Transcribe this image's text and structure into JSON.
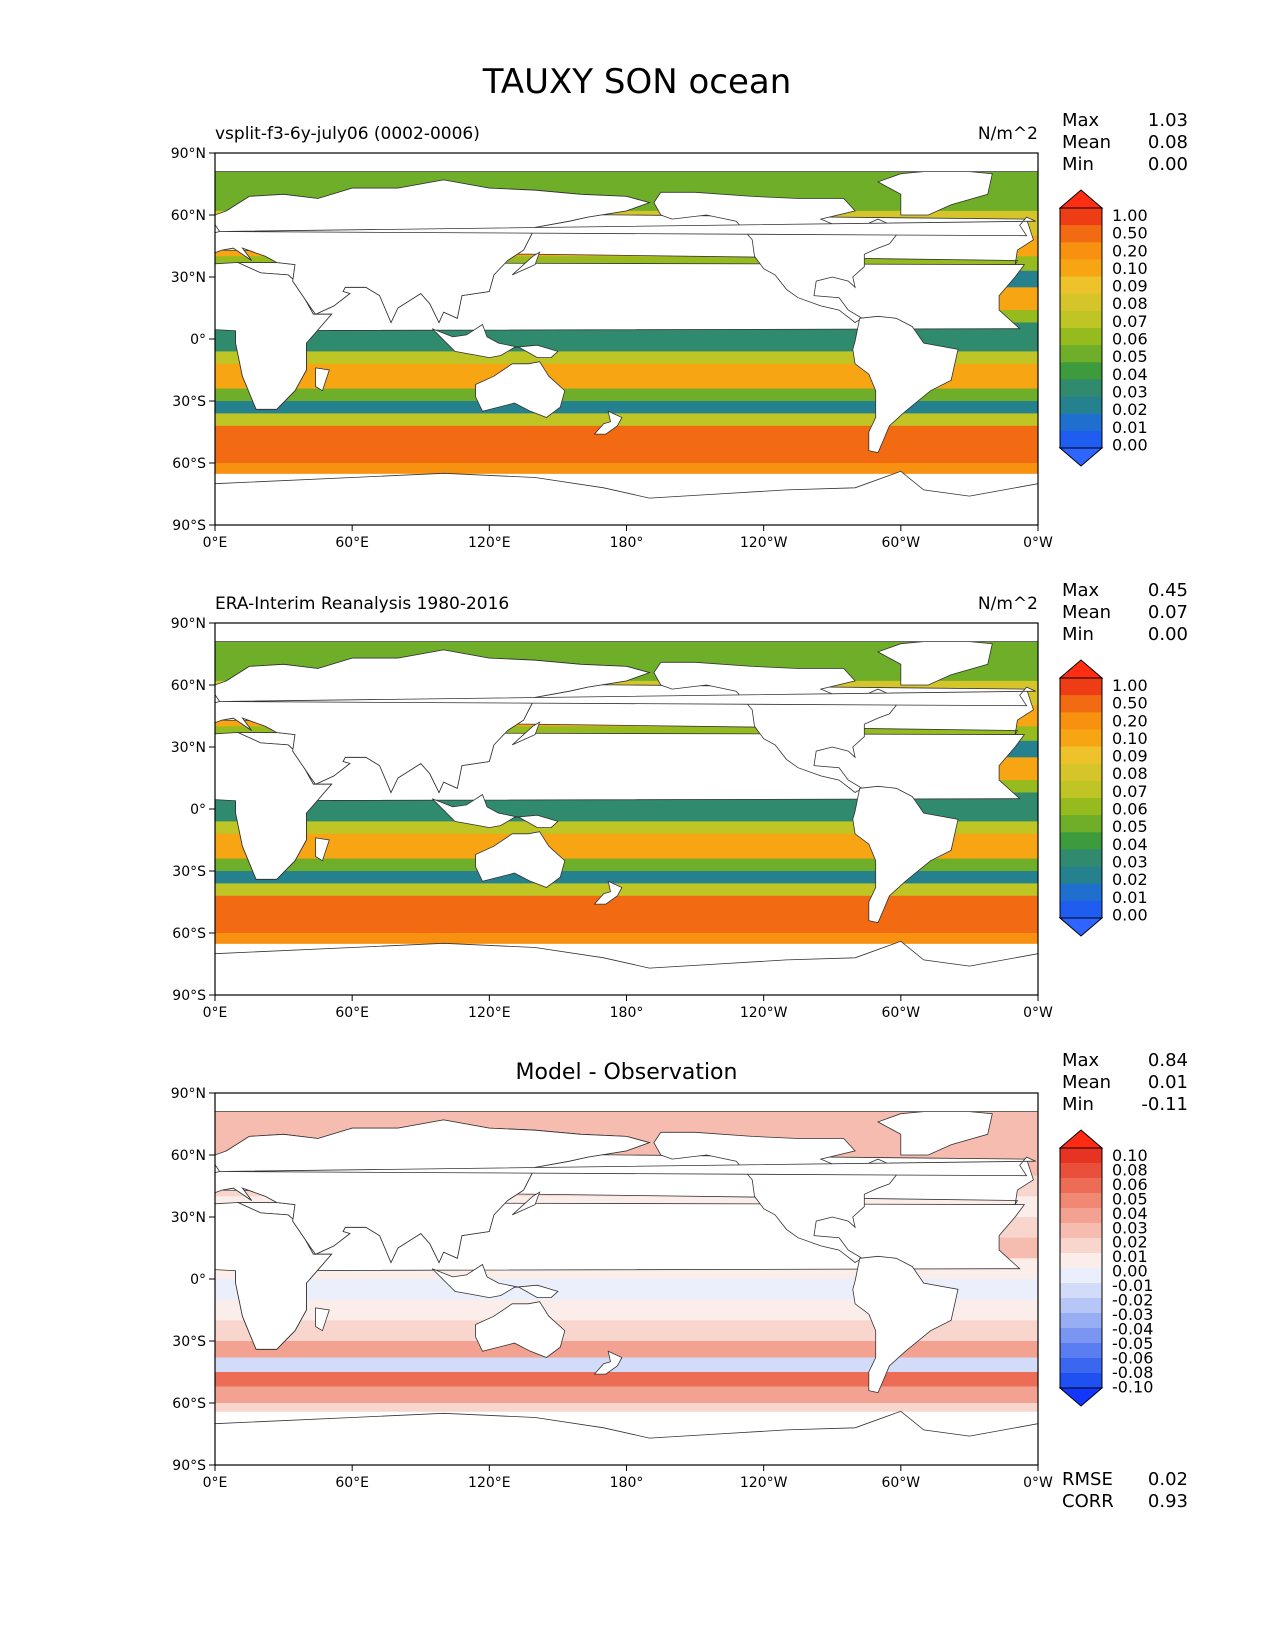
{
  "figure_title": "TAUXY SON ocean",
  "panels": [
    {
      "id": "model",
      "left_title": "vsplit-f3-6y-july06 (0002-0006)",
      "center_title": "",
      "units": "N/m^2",
      "stats": [
        {
          "label": "Max",
          "value": "1.03"
        },
        {
          "label": "Mean",
          "value": "0.08"
        },
        {
          "label": "Min",
          "value": "0.00"
        }
      ],
      "colorbar": {
        "levels": [
          "0.00",
          "0.01",
          "0.02",
          "0.03",
          "0.04",
          "0.05",
          "0.06",
          "0.07",
          "0.08",
          "0.09",
          "0.10",
          "0.20",
          "0.50",
          "1.00"
        ],
        "colors": [
          "#1f5cf0",
          "#1f6fcf",
          "#26818f",
          "#2f8a6e",
          "#3d9a3d",
          "#6fae28",
          "#96bb1f",
          "#bec524",
          "#d6c52a",
          "#eec22a",
          "#f7a513",
          "#f89010",
          "#f26a12",
          "#ee3d14"
        ],
        "under_color": "#2e64ff",
        "over_color": "#ff2d12"
      },
      "footer_stats": []
    },
    {
      "id": "obs",
      "left_title": "ERA-Interim Reanalysis 1980-2016",
      "center_title": "",
      "units": "N/m^2",
      "stats": [
        {
          "label": "Max",
          "value": "0.45"
        },
        {
          "label": "Mean",
          "value": "0.07"
        },
        {
          "label": "Min",
          "value": "0.00"
        }
      ],
      "colorbar": {
        "levels": [
          "0.00",
          "0.01",
          "0.02",
          "0.03",
          "0.04",
          "0.05",
          "0.06",
          "0.07",
          "0.08",
          "0.09",
          "0.10",
          "0.20",
          "0.50",
          "1.00"
        ],
        "colors": [
          "#1f5cf0",
          "#1f6fcf",
          "#26818f",
          "#2f8a6e",
          "#3d9a3d",
          "#6fae28",
          "#96bb1f",
          "#bec524",
          "#d6c52a",
          "#eec22a",
          "#f7a513",
          "#f89010",
          "#f26a12",
          "#ee3d14"
        ],
        "under_color": "#2e64ff",
        "over_color": "#ff2d12"
      },
      "footer_stats": []
    },
    {
      "id": "diff",
      "left_title": "",
      "center_title": "Model - Observation",
      "units": "",
      "stats": [
        {
          "label": "Max",
          "value": "0.84"
        },
        {
          "label": "Mean",
          "value": "0.01"
        },
        {
          "label": "Min",
          "value": "-0.11"
        }
      ],
      "colorbar": {
        "levels": [
          "0.10",
          "0.08",
          "0.06",
          "0.05",
          "0.04",
          "0.03",
          "0.02",
          "0.01",
          "0.00",
          "-0.01",
          "-0.02",
          "-0.03",
          "-0.04",
          "-0.05",
          "-0.06",
          "-0.08",
          "-0.10"
        ],
        "colors": [
          "#1e50f2",
          "#3b66f0",
          "#5a7ef2",
          "#7a96f2",
          "#98aef4",
          "#b6c6f6",
          "#d2dcf8",
          "#eaeffb",
          "#fbeeea",
          "#f8d6ce",
          "#f6bcb0",
          "#f3a292",
          "#f08874",
          "#ec6c55",
          "#e94f3a",
          "#e73422"
        ],
        "under_color": "#1337ff",
        "over_color": "#ff2b12"
      },
      "footer_stats": [
        {
          "label": "RMSE",
          "value": "0.02"
        },
        {
          "label": "CORR",
          "value": "0.93"
        }
      ]
    }
  ],
  "lat_ticks": [
    "90°N",
    "60°N",
    "30°N",
    "0°",
    "30°S",
    "60°S",
    "90°S"
  ],
  "lon_ticks": [
    "0°E",
    "60°E",
    "120°E",
    "180°",
    "120°W",
    "60°W",
    "0°W"
  ],
  "chart_data": [
    {
      "type": "heatmap",
      "title": "vsplit-f3-6y-july06 (0002-0006)",
      "units": "N/m^2",
      "x_ticks": [
        "0°E",
        "60°E",
        "120°E",
        "180°",
        "120°W",
        "60°W",
        "0°W"
      ],
      "y_ticks": [
        "90°N",
        "60°N",
        "30°N",
        "0°",
        "30°S",
        "60°S",
        "90°S"
      ],
      "xlim": [
        0,
        360
      ],
      "ylim": [
        -90,
        90
      ],
      "levels": [
        0.0,
        0.01,
        0.02,
        0.03,
        0.04,
        0.05,
        0.06,
        0.07,
        0.08,
        0.09,
        0.1,
        0.2,
        0.5,
        1.0
      ],
      "stats": {
        "max": 1.03,
        "mean": 0.08,
        "min": 0.0
      }
    },
    {
      "type": "heatmap",
      "title": "ERA-Interim Reanalysis 1980-2016",
      "units": "N/m^2",
      "x_ticks": [
        "0°E",
        "60°E",
        "120°E",
        "180°",
        "120°W",
        "60°W",
        "0°W"
      ],
      "y_ticks": [
        "90°N",
        "60°N",
        "30°N",
        "0°",
        "30°S",
        "60°S",
        "90°S"
      ],
      "xlim": [
        0,
        360
      ],
      "ylim": [
        -90,
        90
      ],
      "levels": [
        0.0,
        0.01,
        0.02,
        0.03,
        0.04,
        0.05,
        0.06,
        0.07,
        0.08,
        0.09,
        0.1,
        0.2,
        0.5,
        1.0
      ],
      "stats": {
        "max": 0.45,
        "mean": 0.07,
        "min": 0.0
      }
    },
    {
      "type": "heatmap",
      "title": "Model - Observation",
      "x_ticks": [
        "0°E",
        "60°E",
        "120°E",
        "180°",
        "120°W",
        "60°W",
        "0°W"
      ],
      "y_ticks": [
        "90°N",
        "60°N",
        "30°N",
        "0°",
        "30°S",
        "60°S",
        "90°S"
      ],
      "xlim": [
        0,
        360
      ],
      "ylim": [
        -90,
        90
      ],
      "levels": [
        -0.1,
        -0.08,
        -0.06,
        -0.05,
        -0.04,
        -0.03,
        -0.02,
        -0.01,
        0.0,
        0.01,
        0.02,
        0.03,
        0.04,
        0.05,
        0.06,
        0.08,
        0.1
      ],
      "stats": {
        "max": 0.84,
        "mean": 0.01,
        "min": -0.11,
        "rmse": 0.02,
        "corr": 0.93
      }
    }
  ]
}
